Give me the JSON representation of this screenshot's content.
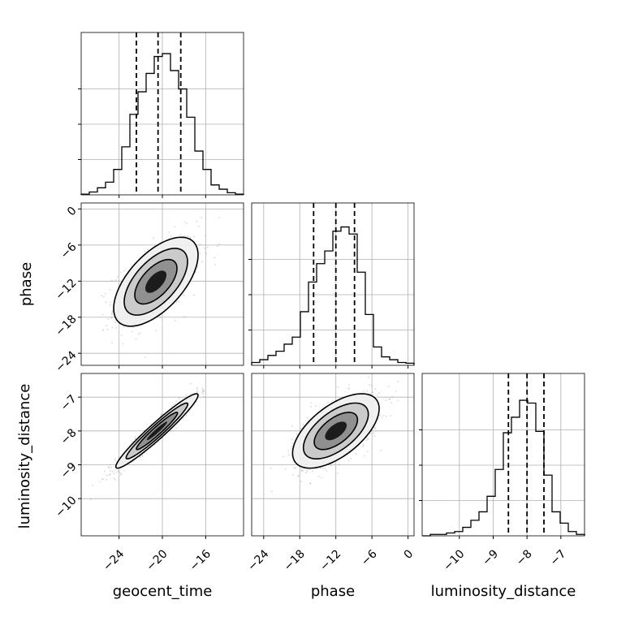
{
  "chart_data": {
    "type": "corner",
    "parameters": [
      "geocent_time",
      "phase",
      "luminosity_distance"
    ],
    "axes": {
      "geocent_time": {
        "range": [
          -27.5,
          -12.5
        ],
        "ticks": [
          -24,
          -20,
          -16
        ],
        "tick_labels": [
          "−24",
          "−20",
          "−16"
        ]
      },
      "phase": {
        "range": [
          -26,
          1
        ],
        "ticks": [
          -24,
          -18,
          -12,
          -6,
          0
        ],
        "tick_labels": [
          "−24",
          "−18",
          "−12",
          "−6",
          "0"
        ]
      },
      "luminosity_distance": {
        "range": [
          -11.1,
          -6.3
        ],
        "ticks": [
          -10,
          -9,
          -8,
          -7
        ],
        "tick_labels": [
          "−10",
          "−9",
          "−8",
          "−7"
        ]
      }
    },
    "marginals": [
      {
        "parameter": "geocent_time",
        "quantiles": [
          -22.4,
          -20.4,
          -18.3
        ],
        "bins": [
          -27.5,
          -26.75,
          -26.0,
          -25.25,
          -24.5,
          -23.75,
          -23.0,
          -22.25,
          -21.5,
          -20.75,
          -20.0,
          -19.25,
          -18.5,
          -17.75,
          -17.0,
          -16.25,
          -15.5,
          -14.75,
          -14.0,
          -13.25,
          -12.5
        ],
        "density": [
          0.005,
          0.02,
          0.05,
          0.09,
          0.18,
          0.34,
          0.57,
          0.73,
          0.86,
          0.98,
          1.0,
          0.88,
          0.75,
          0.55,
          0.31,
          0.18,
          0.07,
          0.04,
          0.015,
          0.005
        ]
      },
      {
        "parameter": "phase",
        "quantiles": [
          -15.7,
          -12.0,
          -8.9
        ],
        "bins": [
          -26.0,
          -24.65,
          -23.3,
          -21.95,
          -20.6,
          -19.25,
          -17.9,
          -16.55,
          -15.2,
          -13.85,
          -12.5,
          -11.15,
          -9.8,
          -8.45,
          -7.1,
          -5.75,
          -4.4,
          -3.05,
          -1.7,
          -0.35,
          1.0
        ],
        "density": [
          0.02,
          0.04,
          0.07,
          0.1,
          0.15,
          0.2,
          0.38,
          0.59,
          0.72,
          0.81,
          0.95,
          0.98,
          0.93,
          0.66,
          0.36,
          0.13,
          0.06,
          0.04,
          0.02,
          0.015
        ]
      },
      {
        "parameter": "luminosity_distance",
        "quantiles": [
          -8.55,
          -8.0,
          -7.5
        ],
        "bins": [
          -11.1,
          -10.86,
          -10.62,
          -10.38,
          -10.14,
          -9.9,
          -9.66,
          -9.42,
          -9.18,
          -8.94,
          -8.7,
          -8.46,
          -8.22,
          -7.98,
          -7.74,
          -7.5,
          -7.26,
          -7.02,
          -6.78,
          -6.54,
          -6.3
        ],
        "density": [
          0.0,
          0.01,
          0.01,
          0.02,
          0.03,
          0.06,
          0.11,
          0.17,
          0.28,
          0.47,
          0.73,
          0.84,
          0.96,
          0.94,
          0.74,
          0.43,
          0.17,
          0.09,
          0.03,
          0.01
        ]
      }
    ],
    "joint": [
      {
        "x": "geocent_time",
        "y": "phase",
        "mean": [
          -20.6,
          -12.1
        ],
        "std": [
          1.95,
          3.7
        ],
        "correlation": 0.6,
        "contour_levels_sigma": [
          0.5,
          1.0,
          1.5,
          2.0
        ]
      },
      {
        "x": "geocent_time",
        "y": "luminosity_distance",
        "mean": [
          -20.5,
          -8.0
        ],
        "std": [
          1.9,
          0.55
        ],
        "correlation": 0.96,
        "contour_levels_sigma": [
          0.5,
          1.0,
          1.5,
          2.0
        ]
      },
      {
        "x": "phase",
        "y": "luminosity_distance",
        "mean": [
          -12.0,
          -8.0
        ],
        "std": [
          3.6,
          0.55
        ],
        "correlation": 0.6,
        "contour_levels_sigma": [
          0.5,
          1.0,
          1.5,
          2.0
        ]
      }
    ],
    "grid": true,
    "scatter_points_per_panel": 700,
    "colors": {
      "data": "#000000",
      "grid": "#b0b0b0",
      "scatter": "#8c8c8c",
      "fill_levels": [
        "#f0f0f0",
        "#c6c6c6",
        "#8a8a8a",
        "#101010"
      ]
    }
  }
}
